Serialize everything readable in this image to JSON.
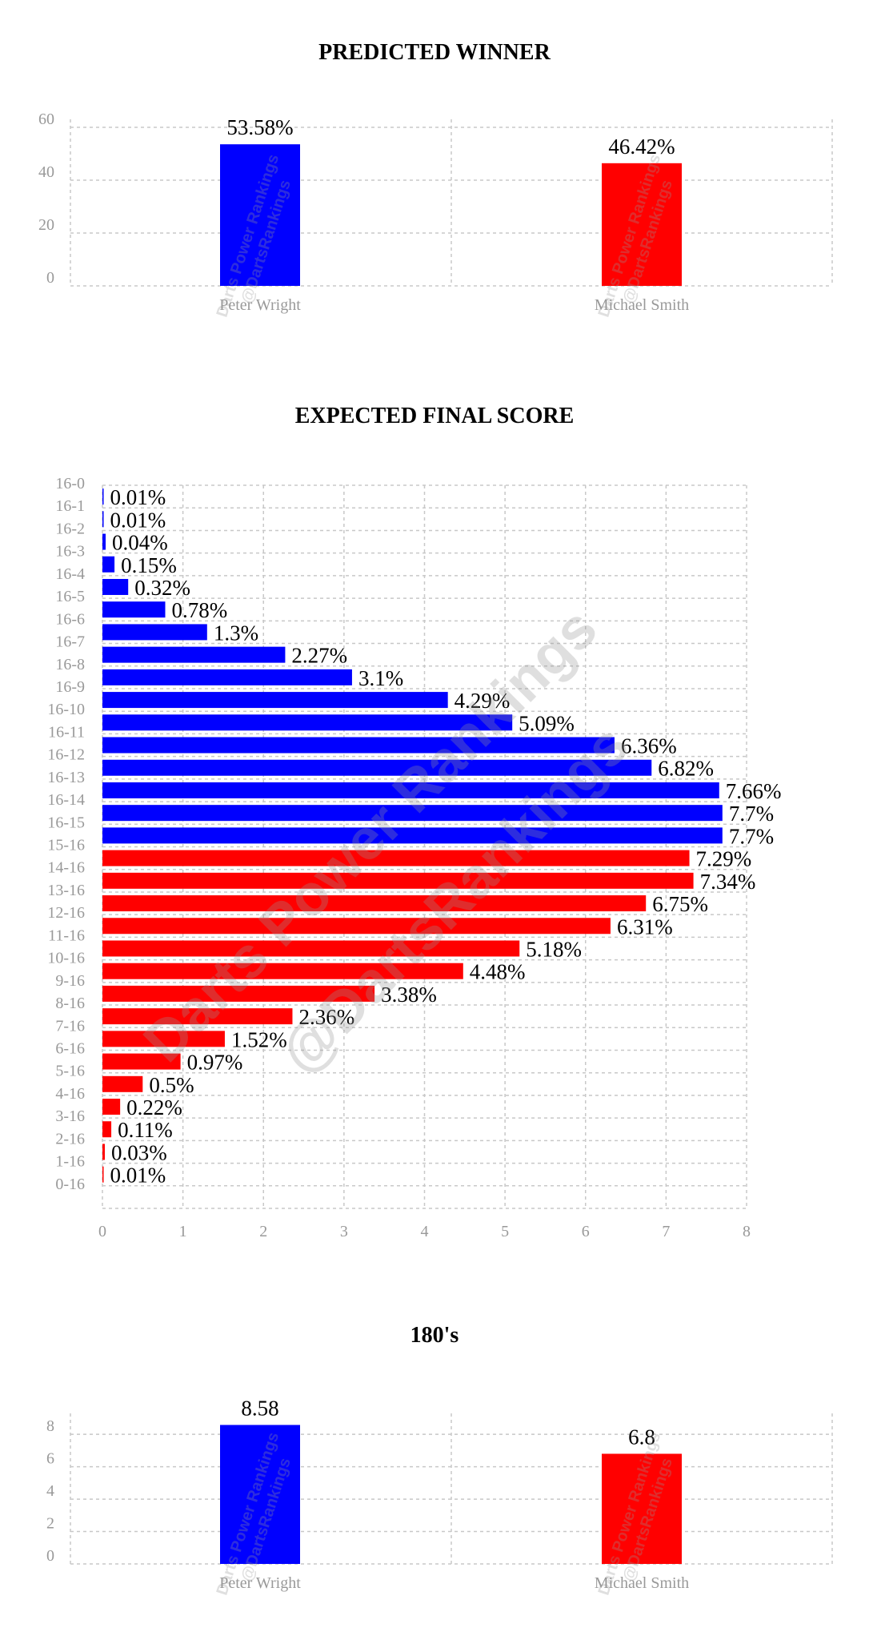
{
  "colors": {
    "player1": "#0000ff",
    "player2": "#ff0000",
    "grid": "#c8c8c8",
    "tick": "#999999"
  },
  "watermark": {
    "line1": "Darts Power Rankings",
    "line2": "@DartsRankings"
  },
  "chart_data": [
    {
      "type": "bar",
      "title": "PREDICTED WINNER",
      "categories": [
        "Peter Wright",
        "Michael Smith"
      ],
      "values": [
        53.58,
        46.42
      ],
      "value_labels": [
        "53.58%",
        "46.42%"
      ],
      "colors": [
        "#0000ff",
        "#ff0000"
      ],
      "ylim": [
        0,
        60
      ],
      "yticks": [
        0,
        20,
        40,
        60
      ],
      "grid": true
    },
    {
      "type": "bar",
      "orientation": "horizontal",
      "title": "EXPECTED FINAL SCORE",
      "categories": [
        "16-0",
        "16-1",
        "16-2",
        "16-3",
        "16-4",
        "16-5",
        "16-6",
        "16-7",
        "16-8",
        "16-9",
        "16-10",
        "16-11",
        "16-12",
        "16-13",
        "16-14",
        "16-15",
        "15-16",
        "14-16",
        "13-16",
        "12-16",
        "11-16",
        "10-16",
        "9-16",
        "8-16",
        "7-16",
        "6-16",
        "5-16",
        "4-16",
        "3-16",
        "2-16",
        "1-16",
        "0-16"
      ],
      "values": [
        0.01,
        0.01,
        0.04,
        0.15,
        0.32,
        0.78,
        1.3,
        2.27,
        3.1,
        4.29,
        5.09,
        6.36,
        6.82,
        7.66,
        7.7,
        7.7,
        7.29,
        7.34,
        6.75,
        6.31,
        5.18,
        4.48,
        3.38,
        2.36,
        1.52,
        0.97,
        0.5,
        0.22,
        0.11,
        0.03,
        0.01,
        null
      ],
      "value_labels": [
        "0.01%",
        "0.01%",
        "0.04%",
        "0.15%",
        "0.32%",
        "0.78%",
        "1.3%",
        "2.27%",
        "3.1%",
        "4.29%",
        "5.09%",
        "6.36%",
        "6.82%",
        "7.66%",
        "7.7%",
        "7.7%",
        "7.29%",
        "7.34%",
        "6.75%",
        "6.31%",
        "5.18%",
        "4.48%",
        "3.38%",
        "2.36%",
        "1.52%",
        "0.97%",
        "0.5%",
        "0.22%",
        "0.11%",
        "0.03%",
        "0.01%",
        ""
      ],
      "colors_by_group": {
        "Peter Wright": "#0000ff",
        "Michael Smith": "#ff0000"
      },
      "blue_count": 16,
      "xlim": [
        0,
        8
      ],
      "xticks": [
        0,
        1,
        2,
        3,
        4,
        5,
        6,
        7,
        8
      ],
      "grid": true
    },
    {
      "type": "bar",
      "title": "180's",
      "categories": [
        "Peter Wright",
        "Michael Smith"
      ],
      "values": [
        8.58,
        6.8
      ],
      "value_labels": [
        "8.58",
        "6.8"
      ],
      "colors": [
        "#0000ff",
        "#ff0000"
      ],
      "ylim": [
        0,
        8.8
      ],
      "yticks": [
        0,
        2,
        4,
        6,
        8
      ],
      "grid": true
    }
  ]
}
